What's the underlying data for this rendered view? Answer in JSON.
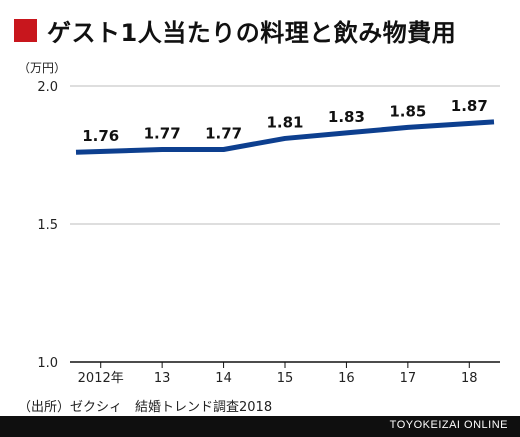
{
  "title": "ゲスト1人当たりの料理と飲み物費用",
  "source": "（出所）ゼクシィ　結婚トレンド調査2018",
  "brand": "TOYOKEIZAI ONLINE",
  "colors": {
    "accent": "#c8161d",
    "line": "#0d3f8f",
    "grid": "#bdbdbd"
  },
  "chart_data": {
    "type": "line",
    "title": "ゲスト1人当たりの料理と飲み物費用",
    "ylabel": "（万円）",
    "xlabel": "",
    "categories": [
      "2012年",
      "13",
      "14",
      "15",
      "16",
      "17",
      "18"
    ],
    "series": [
      {
        "values": [
          1.76,
          1.77,
          1.77,
          1.81,
          1.83,
          1.85,
          1.87
        ]
      }
    ],
    "data_labels": [
      "1.76",
      "1.77",
      "1.77",
      "1.81",
      "1.83",
      "1.85",
      "1.87"
    ],
    "ylim": [
      1.0,
      2.0
    ],
    "yticks": [
      1.0,
      1.5,
      2.0
    ],
    "ytick_labels": [
      "1.0",
      "1.5",
      "2.0"
    ],
    "grid": true
  }
}
